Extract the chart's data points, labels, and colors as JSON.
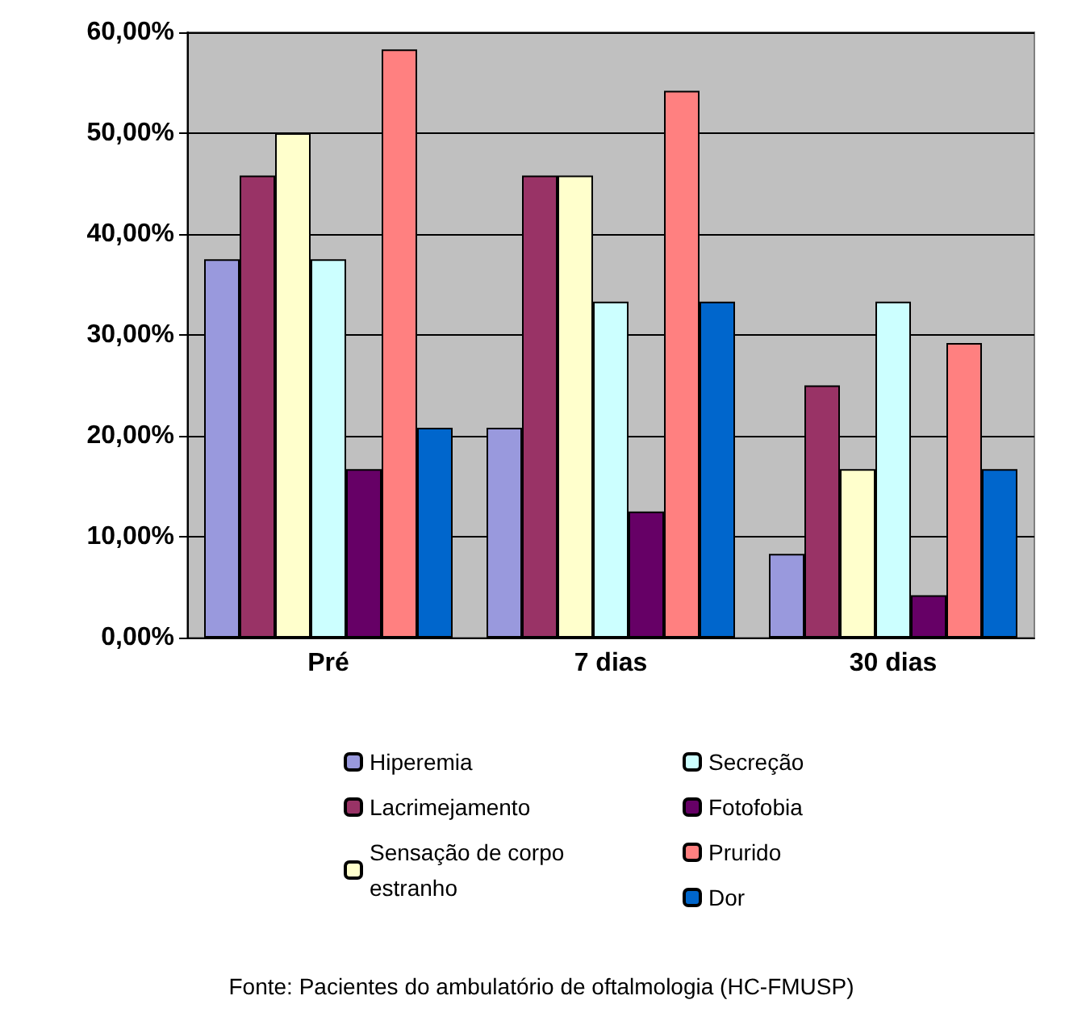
{
  "chart_data": {
    "type": "bar",
    "categories": [
      "Pré",
      "7 dias",
      "30 dias"
    ],
    "series": [
      {
        "name": "Hiperemia",
        "color": "#9999dd",
        "values": [
          37.5,
          20.8,
          8.3
        ]
      },
      {
        "name": "Lacrimejamento",
        "color": "#993366",
        "values": [
          45.8,
          45.8,
          25
        ]
      },
      {
        "name": "Sensação de corpo estranho",
        "color": "#ffffcc",
        "values": [
          50,
          45.8,
          16.7
        ]
      },
      {
        "name": "Secreção",
        "color": "#ccffff",
        "values": [
          37.5,
          33.3,
          33.3
        ]
      },
      {
        "name": "Fotofobia",
        "color": "#660066",
        "values": [
          16.7,
          12.5,
          4.2
        ]
      },
      {
        "name": "Prurido",
        "color": "#ff8080",
        "values": [
          58.3,
          54.2,
          29.2
        ]
      },
      {
        "name": "Dor",
        "color": "#0066cc",
        "values": [
          20.8,
          33.3,
          16.7
        ]
      }
    ],
    "ylim": [
      0,
      60
    ],
    "yticks": [
      {
        "value": 0,
        "label": "0,00%"
      },
      {
        "value": 10,
        "label": "10,00%"
      },
      {
        "value": 20,
        "label": "20,00%"
      },
      {
        "value": 30,
        "label": "30,00%"
      },
      {
        "value": 40,
        "label": "40,00%"
      },
      {
        "value": 50,
        "label": "50,00%"
      },
      {
        "value": 60,
        "label": "60,00%"
      }
    ],
    "grid": "y",
    "legend": "bottom",
    "annotations": [
      "Fonte: Pacientes do ambulatório de oftalmologia (HC-FMUSP)"
    ]
  }
}
